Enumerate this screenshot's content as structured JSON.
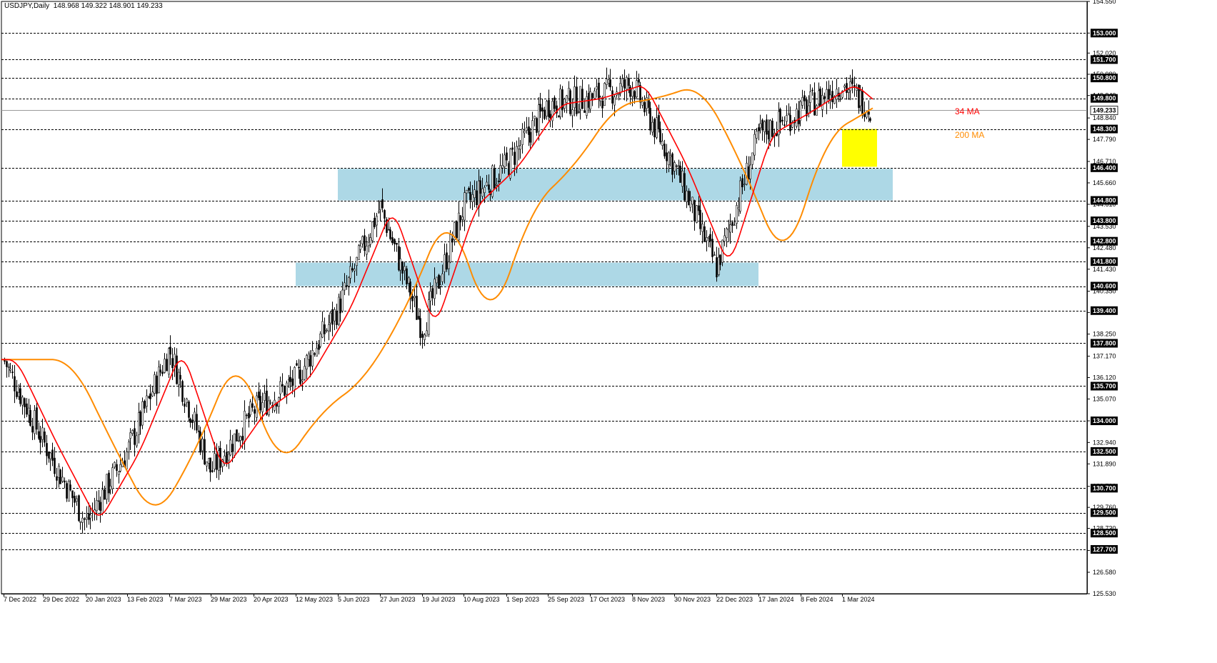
{
  "chart_data": {
    "type": "candlestick",
    "symbol_header": "USDJPY,Daily  148.968 149.322 148.901 149.233",
    "ylim": [
      125.53,
      154.55
    ],
    "y_axis_ticks": [
      "154.550",
      "153.000",
      "152.020",
      "150.980",
      "149.940",
      "148.840",
      "147.790",
      "146.710",
      "145.660",
      "144.610",
      "143.530",
      "142.480",
      "141.430",
      "140.350",
      "139.310",
      "138.250",
      "137.170",
      "136.120",
      "135.070",
      "134.000",
      "132.940",
      "131.890",
      "130.790",
      "129.760",
      "128.730",
      "127.650",
      "126.580",
      "125.530"
    ],
    "x_axis_labels": [
      "7 Dec 2022",
      "29 Dec 2022",
      "20 Jan 2023",
      "13 Feb 2023",
      "7 Mar 2023",
      "29 Mar 2023",
      "20 Apr 2023",
      "12 May 2023",
      "5 Jun 2023",
      "27 Jun 2023",
      "19 Jul 2023",
      "10 Aug 2023",
      "1 Sep 2023",
      "25 Sep 2023",
      "17 Oct 2023",
      "8 Nov 2023",
      "30 Nov 2023",
      "22 Dec 2023",
      "17 Jan 2024",
      "8 Feb 2024",
      "1 Mar 2024"
    ],
    "horizontal_levels": [
      153.0,
      151.7,
      150.8,
      149.8,
      148.3,
      146.4,
      144.8,
      143.8,
      142.8,
      141.8,
      140.6,
      139.4,
      137.8,
      135.7,
      134.0,
      132.5,
      130.7,
      129.5,
      128.5,
      127.7
    ],
    "current_price": 149.233,
    "zones": [
      {
        "from_label": "5 Jun 2023",
        "to_label": "8 Mar 2024",
        "low": 144.8,
        "high": 146.35,
        "color": "#add8e6"
      },
      {
        "from_label": "12 May 2023",
        "to_label": "17 Jan 2024",
        "low": 140.6,
        "high": 141.75,
        "color": "#add8e6"
      },
      {
        "from_label": "1 Mar 2024",
        "to_label": "10 Mar 2024",
        "low": 146.45,
        "high": 148.3,
        "color": "#ffff00"
      }
    ],
    "moving_averages": [
      {
        "name": "34 MA",
        "color": "#ff0000"
      },
      {
        "name": "200 MA",
        "color": "#ff8c00"
      }
    ],
    "close_path": [
      {
        "label": "7 Dec 2022",
        "value": 137.0
      },
      {
        "label": "29 Dec 2022",
        "value": 133.0
      },
      {
        "label": "20 Jan 2023",
        "value": 129.0
      },
      {
        "label": "13 Feb 2023",
        "value": 132.5
      },
      {
        "label": "7 Mar 2023",
        "value": 137.5
      },
      {
        "label": "29 Mar 2023",
        "value": 131.5
      },
      {
        "label": "20 Apr 2023",
        "value": 134.5
      },
      {
        "label": "12 May 2023",
        "value": 136.0
      },
      {
        "label": "5 Jun 2023",
        "value": 139.5
      },
      {
        "label": "27 Jun 2023",
        "value": 144.5
      },
      {
        "label": "19 Jul 2023",
        "value": 138.5
      },
      {
        "label": "10 Aug 2023",
        "value": 144.5
      },
      {
        "label": "1 Sep 2023",
        "value": 146.5
      },
      {
        "label": "25 Sep 2023",
        "value": 149.5
      },
      {
        "label": "17 Oct 2023",
        "value": 149.8
      },
      {
        "label": "8 Nov 2023",
        "value": 150.5
      },
      {
        "label": "30 Nov 2023",
        "value": 146.5
      },
      {
        "label": "22 Dec 2023",
        "value": 141.5
      },
      {
        "label": "17 Jan 2024",
        "value": 148.0
      },
      {
        "label": "8 Feb 2024",
        "value": 149.2
      },
      {
        "label": "1 Mar 2024",
        "value": 150.5
      },
      {
        "label": "13 Mar 2024",
        "value": 149.233
      }
    ]
  }
}
